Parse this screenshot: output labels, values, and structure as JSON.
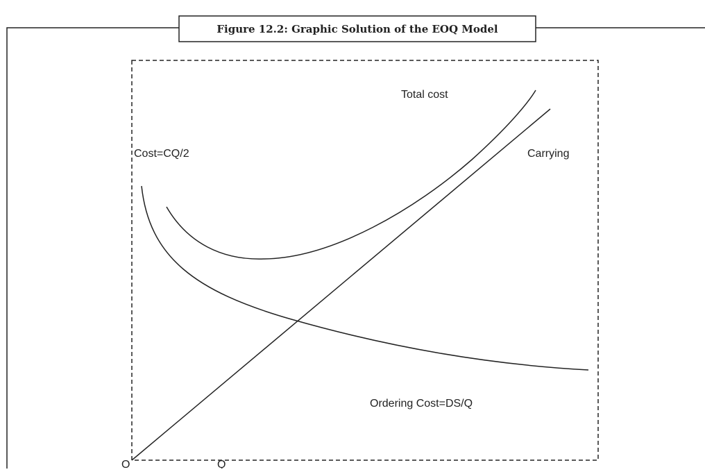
{
  "figure": {
    "title": "Figure 12.2: Graphic Solution of the EOQ Model",
    "labels": {
      "total_cost": "Total cost",
      "carrying_cost": "Cost=CQ/2",
      "carrying": "Carrying",
      "ordering_cost": "Ordering Cost=DS/Q",
      "origin": "O",
      "quantity": "Q"
    }
  }
}
